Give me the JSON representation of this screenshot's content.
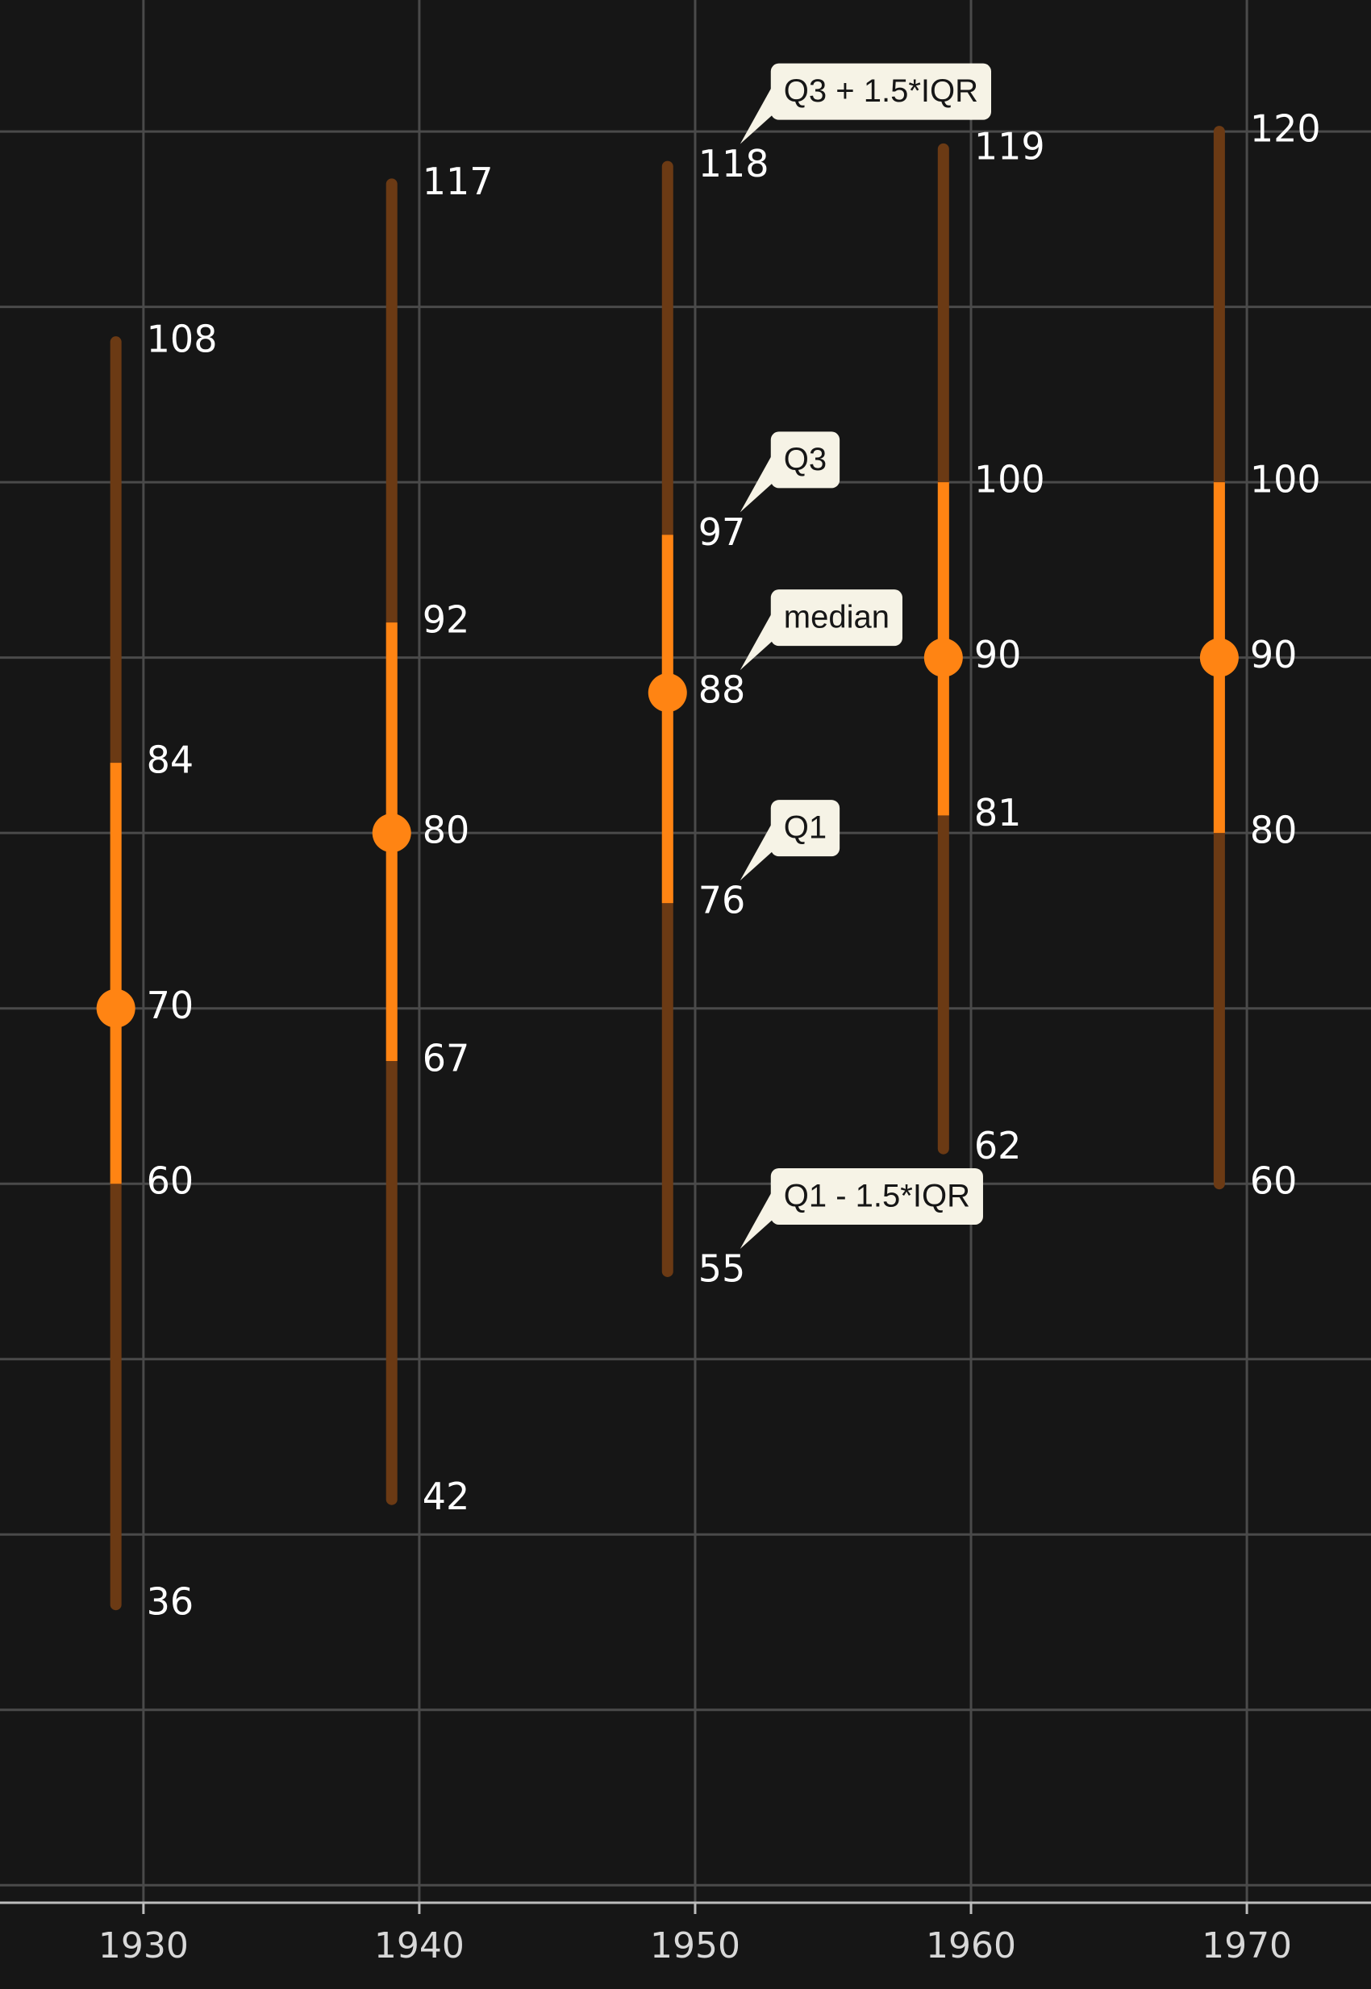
{
  "chart_data": {
    "type": "boxplot",
    "x_ticks": [
      "1930",
      "1940",
      "1950",
      "1960",
      "1970"
    ],
    "x_tick_values": [
      1930,
      1940,
      1950,
      1960,
      1970
    ],
    "xlim": [
      1924.8,
      1974.5
    ],
    "ylim": [
      19,
      127.5
    ],
    "y_gridlines": [
      20,
      30,
      40,
      50,
      60,
      70,
      80,
      90,
      100,
      110,
      120
    ],
    "grid": true,
    "colors": {
      "background": "#161616",
      "grid": "#4a4a4a",
      "axis": "#bdbdbd",
      "box": "#ff8413",
      "whisker": "#6b3a14",
      "text": "#ffffff",
      "callout_bg": "#f6f3e6",
      "callout_text": "#161616"
    },
    "boxes": [
      {
        "x": 1929,
        "low": 36,
        "q1": 60,
        "median": 70,
        "q3": 84,
        "high": 108,
        "labels": {
          "low": "36",
          "q1": "60",
          "median": "70",
          "q3": "84",
          "high": "108"
        }
      },
      {
        "x": 1939,
        "low": 42,
        "q1": 67,
        "median": 80,
        "q3": 92,
        "high": 117,
        "labels": {
          "low": "42",
          "q1": "67",
          "median": "80",
          "q3": "92",
          "high": "117"
        }
      },
      {
        "x": 1949,
        "low": 55,
        "q1": 76,
        "median": 88,
        "q3": 97,
        "high": 118,
        "labels": {
          "low": "55",
          "q1": "76",
          "median": "88",
          "q3": "97",
          "high": "118"
        }
      },
      {
        "x": 1959,
        "low": 62,
        "q1": 81,
        "median": 90,
        "q3": 100,
        "high": 119,
        "labels": {
          "low": "62",
          "q1": "81",
          "median": "90",
          "q3": "100",
          "high": "119"
        }
      },
      {
        "x": 1969,
        "low": 60,
        "q1": 80,
        "median": 90,
        "q3": 100,
        "high": 120,
        "labels": {
          "low": "60",
          "q1": "80",
          "median": "90",
          "q3": "100",
          "high": "120"
        }
      }
    ],
    "annotations": [
      {
        "text": "Q3 + 1.5*IQR",
        "box_index": 2,
        "stat": "high"
      },
      {
        "text": "Q3",
        "box_index": 2,
        "stat": "q3"
      },
      {
        "text": "median",
        "box_index": 2,
        "stat": "median"
      },
      {
        "text": "Q1",
        "box_index": 2,
        "stat": "q1"
      },
      {
        "text": "Q1 - 1.5*IQR",
        "box_index": 2,
        "stat": "low"
      }
    ]
  }
}
